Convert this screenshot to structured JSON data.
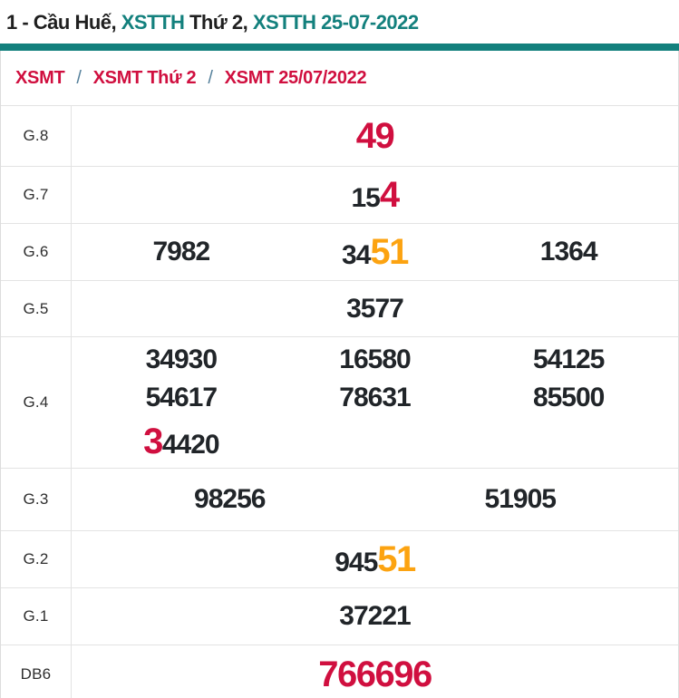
{
  "page_title": {
    "segments": [
      {
        "text": "1 - Cầu Huế, ",
        "color": "dark"
      },
      {
        "text": "XSTTH",
        "color": "teal"
      },
      {
        "text": " Thứ 2, ",
        "color": "dark"
      },
      {
        "text": "XSTTH 25-07-2022",
        "color": "teal"
      }
    ]
  },
  "breadcrumb": {
    "separator": "/",
    "items": [
      "XSMT",
      "XSMT Thứ 2",
      "XSMT 25/07/2022"
    ]
  },
  "colors": {
    "teal": "#13807d",
    "red": "#d00f3f",
    "orange": "#fca311",
    "number_dark": "#212529"
  },
  "table": {
    "rows": [
      {
        "label": "G.8",
        "columns": 1,
        "values": [
          {
            "parts": [
              {
                "text": "49",
                "style": "red-em"
              }
            ]
          }
        ]
      },
      {
        "label": "G.7",
        "columns": 1,
        "values": [
          {
            "parts": [
              {
                "text": "15",
                "style": "normal"
              },
              {
                "text": "4",
                "style": "red-em"
              }
            ]
          }
        ]
      },
      {
        "label": "G.6",
        "columns": 3,
        "values": [
          {
            "parts": [
              {
                "text": "7982",
                "style": "normal"
              }
            ]
          },
          {
            "parts": [
              {
                "text": "34",
                "style": "normal"
              },
              {
                "text": "51",
                "style": "orange-em"
              }
            ]
          },
          {
            "parts": [
              {
                "text": "1364",
                "style": "normal"
              }
            ]
          }
        ]
      },
      {
        "label": "G.5",
        "columns": 1,
        "values": [
          {
            "parts": [
              {
                "text": "3577",
                "style": "normal"
              }
            ]
          }
        ]
      },
      {
        "label": "G.4",
        "columns": 3,
        "values": [
          {
            "parts": [
              {
                "text": "34930",
                "style": "normal"
              }
            ]
          },
          {
            "parts": [
              {
                "text": "16580",
                "style": "normal"
              }
            ]
          },
          {
            "parts": [
              {
                "text": "54125",
                "style": "normal"
              }
            ]
          },
          {
            "parts": [
              {
                "text": "54617",
                "style": "normal"
              }
            ]
          },
          {
            "parts": [
              {
                "text": "78631",
                "style": "normal"
              }
            ]
          },
          {
            "parts": [
              {
                "text": "85500",
                "style": "normal"
              }
            ]
          },
          {
            "parts": [
              {
                "text": "3",
                "style": "red-em"
              },
              {
                "text": "4420",
                "style": "normal"
              }
            ]
          }
        ]
      },
      {
        "label": "G.3",
        "columns": 2,
        "values": [
          {
            "parts": [
              {
                "text": "98256",
                "style": "normal"
              }
            ]
          },
          {
            "parts": [
              {
                "text": "51905",
                "style": "normal"
              }
            ]
          }
        ]
      },
      {
        "label": "G.2",
        "columns": 1,
        "values": [
          {
            "parts": [
              {
                "text": "945",
                "style": "normal"
              },
              {
                "text": "51",
                "style": "orange-em"
              }
            ]
          }
        ]
      },
      {
        "label": "G.1",
        "columns": 1,
        "values": [
          {
            "parts": [
              {
                "text": "37221",
                "style": "normal"
              }
            ]
          }
        ]
      },
      {
        "label": "DB6",
        "columns": 1,
        "values": [
          {
            "parts": [
              {
                "text": "766696",
                "style": "red-em"
              }
            ]
          }
        ]
      }
    ]
  }
}
